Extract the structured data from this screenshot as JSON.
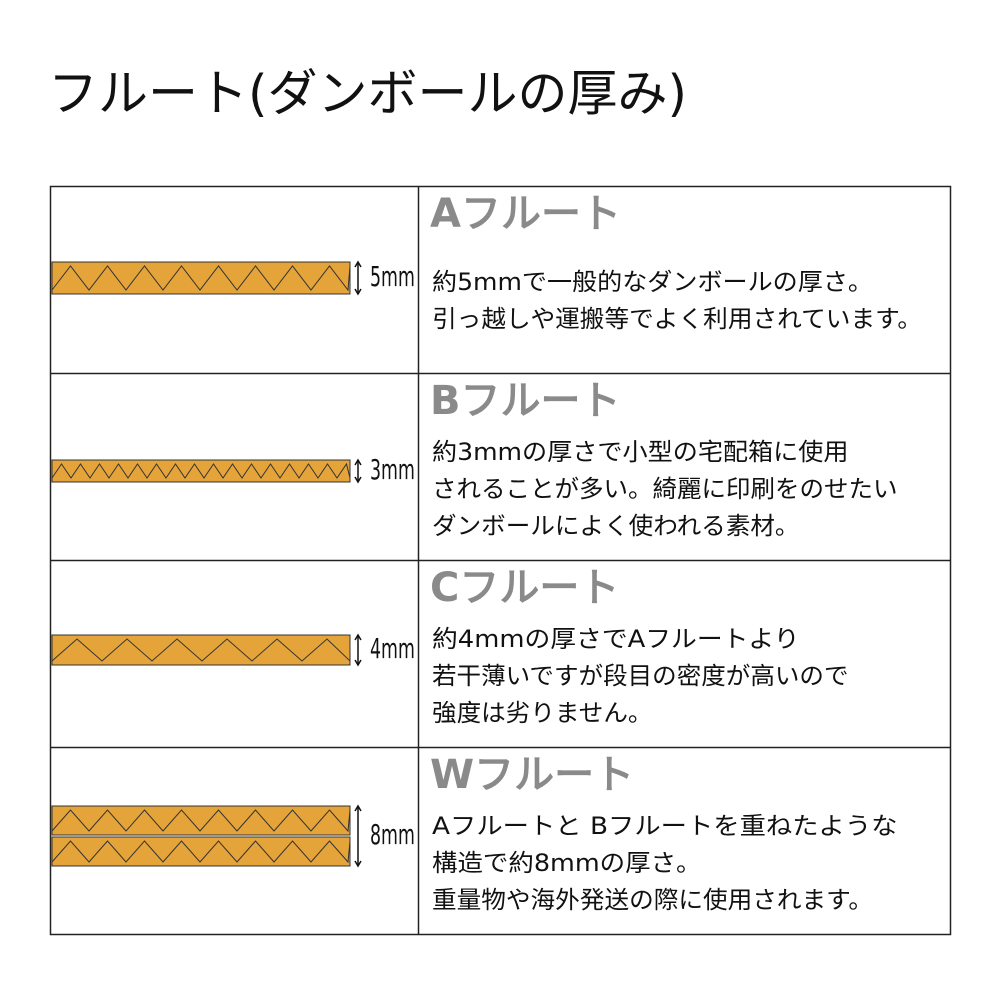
{
  "title": "フルート(ダンボールの厚み)",
  "rows": [
    {
      "name": "Aフルート",
      "thickness": "5mm",
      "description": [
        "約5mmで一般的なダンボールの厚さ。",
        "引っ越しや運搬等でよく利用されています。"
      ]
    },
    {
      "name": "Bフルート",
      "thickness": "3mm",
      "description": [
        "約3mmの厚さで小型の宅配箱に使用",
        "されることが多い。綺麗に印刷をのせたい",
        "ダンボールによく使われる素材。"
      ]
    },
    {
      "name": "Cフルート",
      "thickness": "4mm",
      "description": [
        "約4mmの厚さでAフルートより",
        "若干薄いですが段目の密度が高いので",
        "強度は劣りません。"
      ]
    },
    {
      "name": "Wフルート",
      "thickness": "8mm",
      "description": [
        "Aフルートと Bフルートを重ねたような",
        "構造で約8mmの厚さ。",
        "重量物や海外発送の際に使用されます。"
      ]
    }
  ]
}
